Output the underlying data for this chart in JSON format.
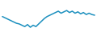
{
  "x": [
    0,
    1,
    2,
    3,
    4,
    5,
    6,
    7,
    8,
    9,
    10,
    11,
    12,
    13,
    14,
    15,
    16,
    17,
    18,
    19,
    20,
    21,
    22,
    23,
    24,
    25,
    26,
    27,
    28,
    29,
    30,
    31,
    32,
    33
  ],
  "y": [
    68,
    66,
    64,
    62,
    60,
    58,
    57,
    55,
    53,
    56,
    52,
    55,
    53,
    57,
    61,
    65,
    68,
    70,
    72,
    74,
    76,
    73,
    75,
    77,
    74,
    76,
    73,
    75,
    72,
    74,
    71,
    73,
    71,
    70
  ],
  "line_color": "#1b8fbe",
  "background_color": "#ffffff",
  "linewidth": 1.1
}
